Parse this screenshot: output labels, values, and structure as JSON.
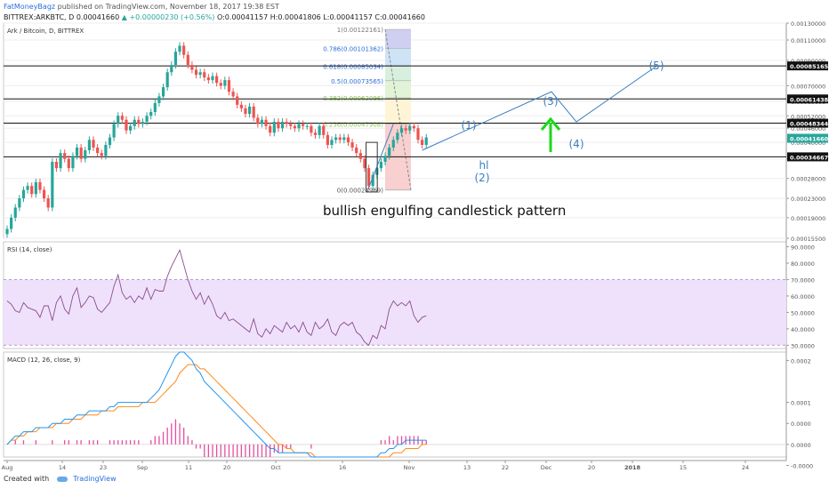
{
  "header": {
    "author": "FatMoneyBagz",
    "published": "published on TradingView.com, November 18, 2017 19:38 EST",
    "symbol": "BITTREX:ARKBTC, D",
    "last": "0.00041660",
    "change": "▲ +0.00000230 (+0.56%)",
    "ohlc": "O:0.00041157 H:0.00041806 L:0.00041157 C:0.00041660"
  },
  "footer": {
    "created_with": "Created with",
    "brand": "TradingView"
  },
  "colors": {
    "up": "#26a69a",
    "down": "#ef5350",
    "rsi": "#8b4c8f",
    "macd": "#2196f3",
    "signal": "#ff8a1c",
    "hist": "#e34fa0",
    "wave": "#3a7ec2",
    "arrow": "#1bd81b",
    "fib": "#2a80b9"
  },
  "chart_data": [
    {
      "type": "candlestick",
      "title": "Ark / Bitcoin, D, BITTREX",
      "y_scale": "log",
      "ylim": [
        0.000155,
        0.0013
      ],
      "y_ticks": [
        "0.00130000",
        "0.00110000",
        "0.00090000",
        "0.00070000",
        "0.00060000",
        "0.00052000",
        "0.00046000",
        "0.00040000",
        "0.00034000",
        "0.00028000",
        "0.00023000",
        "0.00019000",
        "0.00015500"
      ],
      "price_labels": [
        "0.00085165",
        "0.00061438",
        "0.00048344",
        "0.00041660",
        "0.00034667"
      ],
      "horizontal_levels": [
        0.00085165,
        0.00061438,
        0.00048344,
        0.00034667
      ],
      "x_ticks": [
        "Aug",
        "14",
        "23",
        "Sep",
        "11",
        "20",
        "Oct",
        "16",
        "Nov",
        "13",
        "22",
        "Dec",
        "20",
        "2018",
        "15",
        "24"
      ],
      "close_series": [
        0.00017,
        0.00019,
        0.00021,
        0.00023,
        0.00025,
        0.00026,
        0.00024,
        0.00027,
        0.00025,
        0.00023,
        0.00021,
        0.00033,
        0.00031,
        0.00036,
        0.00034,
        0.00031,
        0.00035,
        0.00038,
        0.00034,
        0.00037,
        0.00041,
        0.00038,
        0.00036,
        0.00035,
        0.00039,
        0.00042,
        0.00048,
        0.00052,
        0.0005,
        0.00045,
        0.00047,
        0.0005,
        0.00048,
        0.00049,
        0.00052,
        0.00054,
        0.00059,
        0.00063,
        0.00069,
        0.0008,
        0.00086,
        0.00098,
        0.00104,
        0.00095,
        0.00086,
        0.00082,
        0.00078,
        0.0008,
        0.00076,
        0.00074,
        0.00077,
        0.00072,
        0.0007,
        0.00074,
        0.00066,
        0.00063,
        0.00058,
        0.00056,
        0.00053,
        0.00057,
        0.00051,
        0.00048,
        0.0005,
        0.00047,
        0.00044,
        0.00049,
        0.00046,
        0.00049,
        0.00048,
        0.00047,
        0.00046,
        0.00048,
        0.00047,
        0.00047,
        0.00044,
        0.00043,
        0.00047,
        0.00043,
        0.00039,
        0.00041,
        0.00042,
        0.00041,
        0.00042,
        0.0004,
        0.00038,
        0.00036,
        0.00034,
        0.00031,
        0.00026,
        0.00029,
        0.00031,
        0.00033,
        0.00035,
        0.00038,
        0.00041,
        0.00044,
        0.00046,
        0.00045,
        0.00047,
        0.00046,
        0.00041,
        0.00039,
        0.00042
      ],
      "fibonacci": [
        {
          "label": "1(0.00122161)",
          "value": 0.00122161
        },
        {
          "label": "0.786(0.00101362)",
          "value": 0.00101362
        },
        {
          "label": "0.618(0.00085034)",
          "value": 0.00085034
        },
        {
          "label": "0.5(0.00073565)",
          "value": 0.00073565
        },
        {
          "label": "0.382(0.00062096)",
          "value": 0.00062096
        },
        {
          "label": "0.236(0.00047908)",
          "value": 0.00047908
        },
        {
          "label": "0(0.00024969)",
          "value": 0.00024969
        }
      ],
      "wave_labels": [
        "(1)",
        "(2)",
        "(3)",
        "(4)",
        "(5)",
        "hl"
      ],
      "annotation": "bullish engulfing candlestick pattern"
    },
    {
      "type": "line",
      "title": "RSI (14, close)",
      "ylim": [
        28,
        93
      ],
      "y_ticks": [
        90,
        80,
        70,
        60,
        50,
        40,
        30
      ],
      "y_tick_labels": [
        "90.0000",
        "80.0000",
        "70.0000",
        "60.0000",
        "50.0000",
        "40.0000",
        "30.0000"
      ],
      "band": [
        30,
        70
      ],
      "values": [
        57,
        55,
        51,
        50,
        56,
        53,
        52,
        51,
        47,
        54,
        54,
        45,
        56,
        60,
        52,
        49,
        60,
        65,
        53,
        56,
        60,
        59,
        52,
        50,
        53,
        56,
        66,
        73,
        62,
        58,
        60,
        56,
        60,
        58,
        65,
        58,
        64,
        63,
        63,
        72,
        78,
        83,
        88,
        79,
        70,
        63,
        58,
        62,
        55,
        60,
        55,
        48,
        46,
        50,
        45,
        46,
        44,
        42,
        40,
        38,
        46,
        37,
        35,
        40,
        37,
        42,
        40,
        38,
        44,
        40,
        42,
        38,
        44,
        38,
        36,
        44,
        40,
        42,
        46,
        38,
        36,
        42,
        44,
        42,
        44,
        38,
        36,
        32,
        30,
        36,
        34,
        42,
        40,
        52,
        57,
        54,
        56,
        54,
        57,
        48,
        44,
        47,
        48
      ]
    },
    {
      "type": "line",
      "title": "MACD (12, 26, close, 9)",
      "ylim": [
        -3e-05,
        0.00022
      ],
      "y_ticks": [
        0.0002,
        0.0001,
        5e-05,
        0.0,
        -5e-05
      ],
      "y_tick_labels": [
        "0.0002",
        "0.0001",
        "0.0000",
        "0.0000",
        "-0.0000"
      ],
      "series": [
        {
          "name": "MACD",
          "values": [
            0,
            1e-05,
            2e-05,
            2e-05,
            3e-05,
            3e-05,
            3e-05,
            4e-05,
            4e-05,
            4e-05,
            4e-05,
            5e-05,
            5e-05,
            5e-05,
            6e-05,
            6e-05,
            6e-05,
            7e-05,
            7e-05,
            7e-05,
            8e-05,
            8e-05,
            8e-05,
            8e-05,
            8e-05,
            9e-05,
            9e-05,
            0.0001,
            0.0001,
            0.0001,
            0.0001,
            0.0001,
            0.0001,
            0.0001,
            0.0001,
            0.00011,
            0.00012,
            0.00013,
            0.00015,
            0.00017,
            0.00019,
            0.00021,
            0.00022,
            0.00022,
            0.00021,
            0.0002,
            0.00018,
            0.00017,
            0.00015,
            0.00014,
            0.00013,
            0.00012,
            0.00011,
            0.0001,
            9e-05,
            8e-05,
            7e-05,
            6e-05,
            5e-05,
            4e-05,
            3e-05,
            2e-05,
            1e-05,
            0,
            -1e-05,
            -1e-05,
            -2e-05,
            -2e-05,
            -2e-05,
            -2e-05,
            -2e-05,
            -2e-05,
            -2e-05,
            -2e-05,
            -3e-05,
            -3e-05,
            -3e-05,
            -3e-05,
            -3e-05,
            -3e-05,
            -3e-05,
            -3e-05,
            -3e-05,
            -3e-05,
            -3e-05,
            -3e-05,
            -3e-05,
            -3e-05,
            -3e-05,
            -3e-05,
            -3e-05,
            -2e-05,
            -2e-05,
            -1e-05,
            -1e-05,
            0,
            0,
            1e-05,
            1e-05,
            1e-05,
            1e-05,
            1e-05,
            1e-05
          ]
        },
        {
          "name": "Signal",
          "values": [
            0,
            1e-05,
            1e-05,
            2e-05,
            2e-05,
            3e-05,
            3e-05,
            3e-05,
            4e-05,
            4e-05,
            4e-05,
            4e-05,
            5e-05,
            5e-05,
            5e-05,
            5e-05,
            6e-05,
            6e-05,
            6e-05,
            7e-05,
            7e-05,
            7e-05,
            7e-05,
            8e-05,
            8e-05,
            8e-05,
            8e-05,
            9e-05,
            9e-05,
            9e-05,
            9e-05,
            9e-05,
            9e-05,
            0.0001,
            0.0001,
            0.0001,
            0.0001,
            0.00011,
            0.00012,
            0.00013,
            0.00014,
            0.00015,
            0.00017,
            0.00018,
            0.00019,
            0.00019,
            0.00019,
            0.00018,
            0.00018,
            0.00017,
            0.00016,
            0.00015,
            0.00014,
            0.00013,
            0.00012,
            0.00011,
            0.0001,
            9e-05,
            8e-05,
            7e-05,
            6e-05,
            5e-05,
            4e-05,
            3e-05,
            2e-05,
            1e-05,
            0,
            0,
            -1e-05,
            -1e-05,
            -2e-05,
            -2e-05,
            -2e-05,
            -2e-05,
            -2e-05,
            -3e-05,
            -3e-05,
            -3e-05,
            -3e-05,
            -3e-05,
            -3e-05,
            -3e-05,
            -3e-05,
            -3e-05,
            -3e-05,
            -3e-05,
            -3e-05,
            -3e-05,
            -3e-05,
            -3e-05,
            -3e-05,
            -3e-05,
            -3e-05,
            -3e-05,
            -2e-05,
            -2e-05,
            -2e-05,
            -1e-05,
            -1e-05,
            -1e-05,
            -1e-05,
            0,
            0
          ]
        },
        {
          "name": "Histogram",
          "values": [
            0,
            0,
            1e-05,
            0,
            1e-05,
            0,
            0,
            1e-05,
            0,
            0,
            0,
            1e-05,
            0,
            0,
            1e-05,
            1e-05,
            0,
            1e-05,
            1e-05,
            0,
            1e-05,
            1e-05,
            1e-05,
            0,
            0,
            1e-05,
            1e-05,
            1e-05,
            1e-05,
            1e-05,
            1e-05,
            1e-05,
            1e-05,
            0,
            0,
            1e-05,
            2e-05,
            2e-05,
            3e-05,
            4e-05,
            5e-05,
            6e-05,
            5e-05,
            4e-05,
            2e-05,
            1e-05,
            -1e-05,
            -1e-05,
            -3e-05,
            -3e-05,
            -3e-05,
            -3e-05,
            -3e-05,
            -3e-05,
            -3e-05,
            -3e-05,
            -3e-05,
            -3e-05,
            -3e-05,
            -3e-05,
            -3e-05,
            -3e-05,
            -3e-05,
            -3e-05,
            -3e-05,
            -2e-05,
            -2e-05,
            -2e-05,
            -1e-05,
            -1e-05,
            0,
            0,
            0,
            0,
            -1e-05,
            0,
            0,
            0,
            0,
            0,
            0,
            0,
            0,
            0,
            0,
            0,
            0,
            0,
            0,
            0,
            0,
            1e-05,
            1e-05,
            2e-05,
            1e-05,
            2e-05,
            2e-05,
            2e-05,
            2e-05,
            2e-05,
            2e-05,
            1e-05,
            1e-05
          ]
        }
      ]
    }
  ]
}
